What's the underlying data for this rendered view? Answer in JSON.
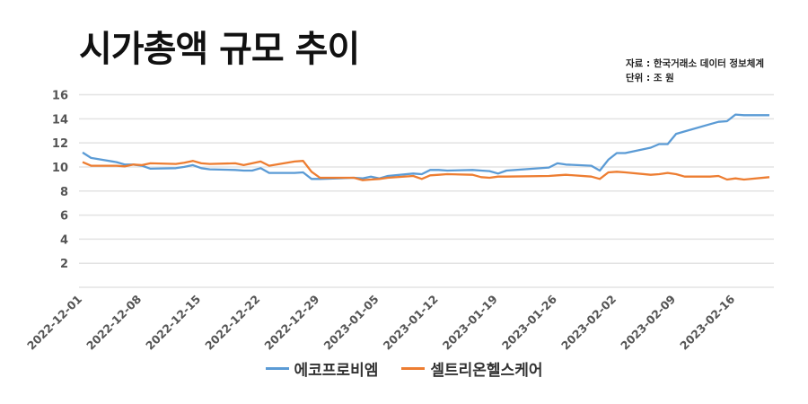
{
  "title": "시가총액 규모 추이",
  "source_note": "자료 : 한국거래소 데이터 정보체계",
  "unit_note": "단위 : 조 원",
  "chart_data": {
    "type": "line",
    "title": "시가총액 규모 추이",
    "ylabel": "조 원",
    "ylim": [
      0,
      16
    ],
    "yticks": [
      2,
      4,
      6,
      8,
      10,
      12,
      14,
      16
    ],
    "xlim": [
      "2022-12-01",
      "2023-02-20"
    ],
    "xticks": [
      "2022-12-01",
      "2022-12-08",
      "2022-12-15",
      "2022-12-22",
      "2022-12-29",
      "2023-01-05",
      "2023-01-12",
      "2023-01-19",
      "2023-01-26",
      "2023-02-02",
      "2023-02-09",
      "2023-02-16"
    ],
    "grid": true,
    "legend": "bottom",
    "x": [
      "2022-12-01",
      "2022-12-02",
      "2022-12-05",
      "2022-12-06",
      "2022-12-07",
      "2022-12-08",
      "2022-12-09",
      "2022-12-12",
      "2022-12-13",
      "2022-12-14",
      "2022-12-15",
      "2022-12-16",
      "2022-12-19",
      "2022-12-20",
      "2022-12-21",
      "2022-12-22",
      "2022-12-23",
      "2022-12-26",
      "2022-12-27",
      "2022-12-28",
      "2022-12-29",
      "2023-01-02",
      "2023-01-03",
      "2023-01-04",
      "2023-01-05",
      "2023-01-06",
      "2023-01-09",
      "2023-01-10",
      "2023-01-11",
      "2023-01-12",
      "2023-01-13",
      "2023-01-16",
      "2023-01-17",
      "2023-01-18",
      "2023-01-19",
      "2023-01-20",
      "2023-01-25",
      "2023-01-26",
      "2023-01-27",
      "2023-01-30",
      "2023-01-31",
      "2023-02-01",
      "2023-02-02",
      "2023-02-03",
      "2023-02-06",
      "2023-02-07",
      "2023-02-08",
      "2023-02-09",
      "2023-02-10",
      "2023-02-13",
      "2023-02-14",
      "2023-02-15",
      "2023-02-16",
      "2023-02-17",
      "2023-02-20"
    ],
    "series": [
      {
        "name": "에코프로비엠",
        "color": "#5b9bd5",
        "values": [
          11.2,
          10.75,
          10.4,
          10.2,
          10.2,
          10.1,
          9.85,
          9.9,
          10.0,
          10.15,
          9.9,
          9.8,
          9.75,
          9.7,
          9.7,
          9.9,
          9.5,
          9.5,
          9.55,
          9.0,
          9.0,
          9.1,
          9.05,
          9.2,
          9.05,
          9.25,
          9.45,
          9.4,
          9.75,
          9.75,
          9.7,
          9.75,
          9.7,
          9.65,
          9.45,
          9.7,
          9.95,
          10.3,
          10.2,
          10.1,
          9.7,
          10.6,
          11.15,
          11.15,
          11.6,
          11.9,
          11.9,
          12.75,
          12.95,
          13.55,
          13.75,
          13.8,
          14.35,
          14.3,
          14.3
        ]
      },
      {
        "name": "셀트리온헬스케어",
        "color": "#ed7d31",
        "values": [
          10.4,
          10.1,
          10.1,
          10.05,
          10.2,
          10.15,
          10.3,
          10.25,
          10.35,
          10.5,
          10.3,
          10.25,
          10.3,
          10.15,
          10.3,
          10.45,
          10.1,
          10.45,
          10.5,
          9.6,
          9.1,
          9.1,
          8.9,
          8.95,
          9.0,
          9.1,
          9.25,
          9.0,
          9.3,
          9.35,
          9.4,
          9.35,
          9.15,
          9.1,
          9.2,
          9.2,
          9.25,
          9.3,
          9.35,
          9.2,
          9.0,
          9.55,
          9.6,
          9.55,
          9.35,
          9.4,
          9.5,
          9.4,
          9.2,
          9.2,
          9.25,
          8.95,
          9.05,
          8.95,
          9.15
        ]
      }
    ]
  }
}
